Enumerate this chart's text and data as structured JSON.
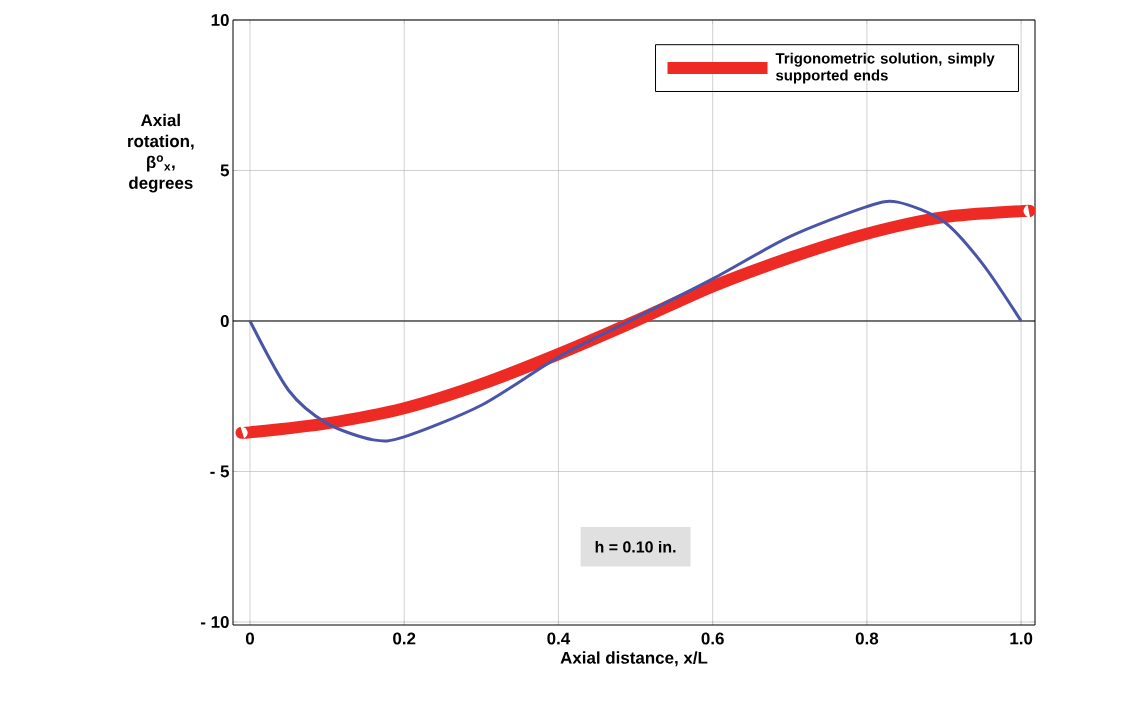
{
  "chart_data": {
    "type": "line",
    "xlabel": "Axial distance, x/L",
    "ylabel": "Axial rotation, β$^{o}$$_{x}$, degrees",
    "xlim": [
      -0.022,
      1.018
    ],
    "ylim": [
      -10.1,
      10
    ],
    "xticks": [
      0,
      0.2,
      0.4,
      0.6,
      0.8,
      {
        "value": 1.0,
        "label": "1.0"
      }
    ],
    "yticks": [
      {
        "value": -10,
        "label": "- 10"
      },
      {
        "value": -5,
        "label": "- 5"
      },
      0,
      5,
      10
    ],
    "grid": true,
    "legend": "top right",
    "ref_lines": [
      {
        "axis": "y",
        "value": 0,
        "color": "#000000"
      }
    ],
    "series": [
      {
        "name": "Trigonometric solution, simply supported ends",
        "color": "#ee2a24",
        "x": [
          -0.01,
          0,
          0.1,
          0.2,
          0.3,
          0.4,
          0.5,
          0.6,
          0.7,
          0.8,
          0.9,
          1.0,
          1.01
        ],
        "values": [
          -3.7,
          -3.7,
          -3.4,
          -2.9,
          -2.1,
          -1.1,
          0,
          1.15,
          2.1,
          2.9,
          3.45,
          3.65,
          3.65
        ]
      },
      {
        "color": "#4a55a8",
        "x": [
          0,
          0.05,
          0.1,
          0.16,
          0.2,
          0.3,
          0.4,
          0.5,
          0.6,
          0.7,
          0.8,
          0.84,
          0.9,
          0.95,
          1.0
        ],
        "values": [
          0,
          -2.3,
          -3.4,
          -3.95,
          -3.85,
          -2.8,
          -1.2,
          0.1,
          1.4,
          2.8,
          3.8,
          3.95,
          3.3,
          1.9,
          0
        ]
      }
    ],
    "annotations": [
      "h = 0.10 in."
    ]
  }
}
